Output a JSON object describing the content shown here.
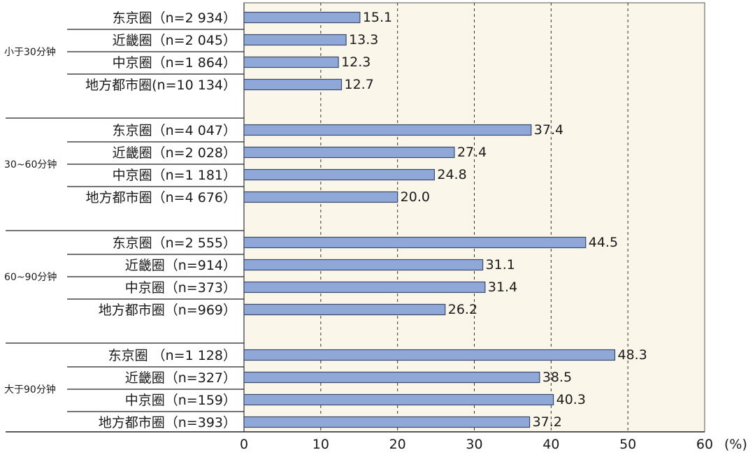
{
  "chart_data": {
    "type": "bar",
    "orientation": "horizontal",
    "unit": "(%)",
    "xlim": [
      0,
      60
    ],
    "xticks": [
      "0",
      "10",
      "20",
      "30",
      "40",
      "50",
      "60"
    ],
    "grid": "vertical-dashed",
    "bar_color": "#8FA8D8",
    "plot_background": "#FBF6EA",
    "groups": [
      {
        "label": "小于30分钟",
        "items": [
          {
            "label": "东京圈（n=2 934）",
            "value": 15.1
          },
          {
            "label": "近畿圈（n=2 045）",
            "value": 13.3
          },
          {
            "label": "中京圈（n=1 864）",
            "value": 12.3
          },
          {
            "label": "地方都市圈(n=10 134）",
            "value": 12.7
          }
        ]
      },
      {
        "label": "30~60分钟",
        "items": [
          {
            "label": "东京圈（n=4 047）",
            "value": 37.4
          },
          {
            "label": "近畿圈（n=2 028）",
            "value": 27.4
          },
          {
            "label": "中京圈（n=1 181）",
            "value": 24.8
          },
          {
            "label": "地方都市圈（n=4 676）",
            "value": 20.0
          }
        ]
      },
      {
        "label": "60~90分钟",
        "items": [
          {
            "label": "东京圈（n=2 555）",
            "value": 44.5
          },
          {
            "label": "近畿圈（n=914）",
            "value": 31.1
          },
          {
            "label": "中京圈（n=373）",
            "value": 31.4
          },
          {
            "label": "地方都市圈（n=969）",
            "value": 26.2
          }
        ]
      },
      {
        "label": "大于90分钟",
        "items": [
          {
            "label": "东京圈 （n=1 128）",
            "value": 48.3
          },
          {
            "label": "近畿圈（n=327）",
            "value": 38.5
          },
          {
            "label": "中京圈（n=159）",
            "value": 40.3
          },
          {
            "label": "地方都市圈（n=393）",
            "value": 37.2
          }
        ]
      }
    ]
  }
}
